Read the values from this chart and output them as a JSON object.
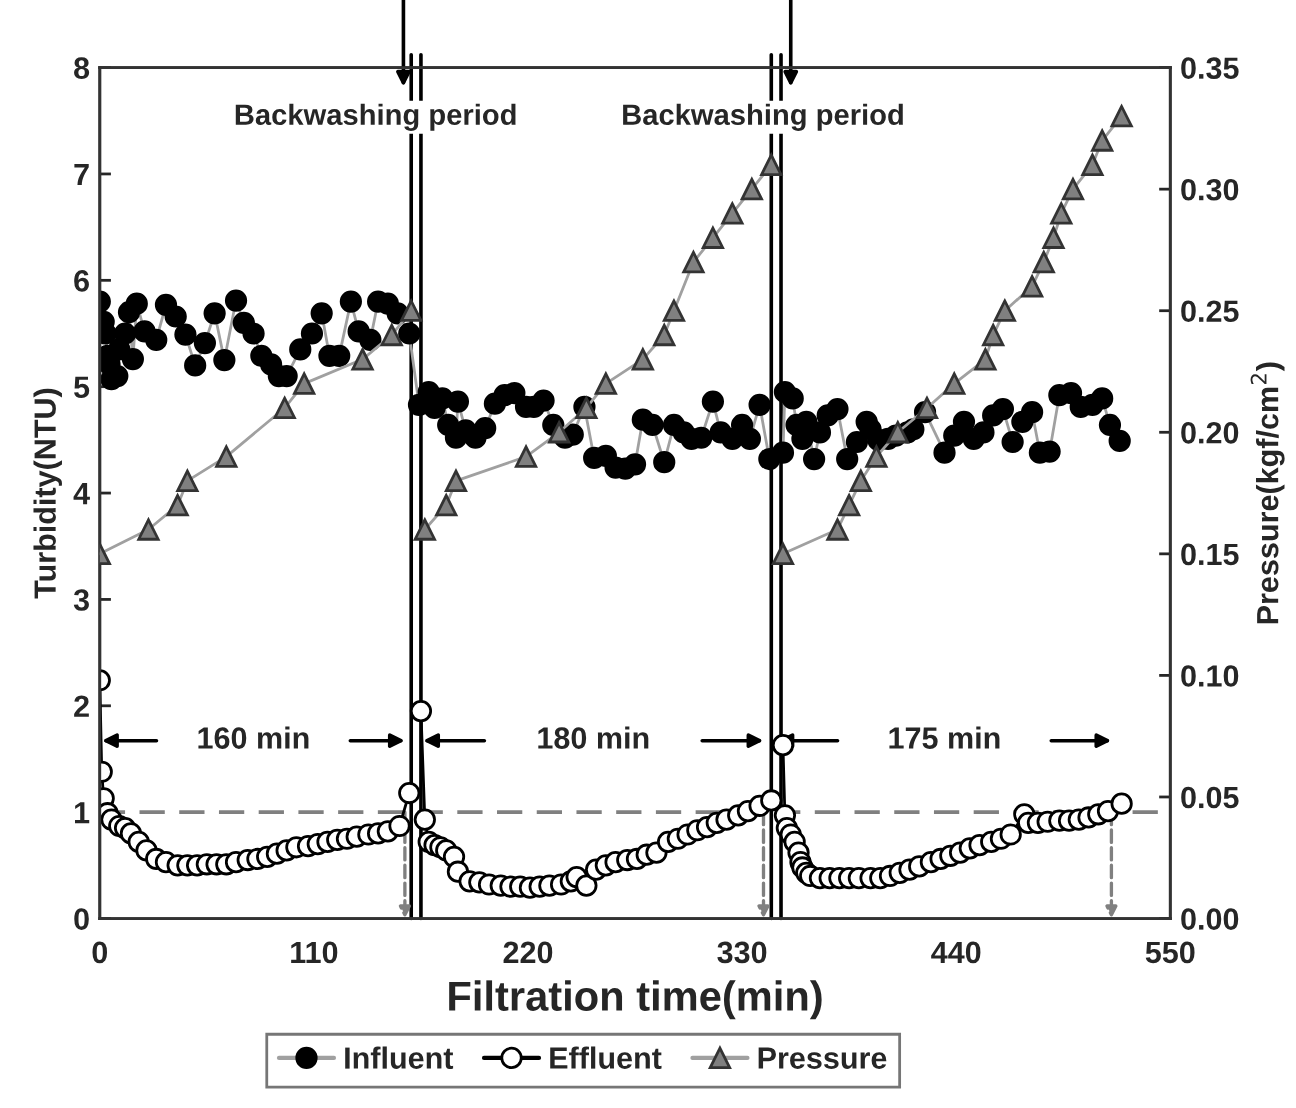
{
  "chart_data": {
    "type": "line",
    "xlabel": "Filtration time(min)",
    "ylabel": "Turbidity(NTU)",
    "y2label": "Pressure(kgf/cm$^{2}$)",
    "xlim": [
      0,
      550
    ],
    "xticks": [
      0,
      110,
      220,
      330,
      440,
      550
    ],
    "ylim": [
      0,
      8
    ],
    "yticks": [
      0,
      1,
      2,
      3,
      4,
      5,
      6,
      7,
      8
    ],
    "y2lim": [
      0,
      0.35
    ],
    "y2ticks": [
      {
        "value": 0,
        "label": "0.00"
      },
      {
        "value": 0.05,
        "label": "0.05"
      },
      {
        "value": 0.1,
        "label": "0.10"
      },
      {
        "value": 0.15,
        "label": "0.15"
      },
      {
        "value": 0.2,
        "label": "0.20"
      },
      {
        "value": 0.25,
        "label": "0.25"
      },
      {
        "value": 0.3,
        "label": "0.30"
      },
      {
        "value": 0.35,
        "label": "0.35"
      }
    ],
    "grid": false,
    "legend": "bottom",
    "line_style": "solid",
    "series": [
      {
        "name": "Influent",
        "color": "#000000",
        "marker": "circle",
        "x": [
          0,
          2,
          3,
          4,
          5,
          6,
          9,
          10,
          13,
          15,
          17,
          19,
          23,
          29,
          34,
          39,
          44,
          49,
          54,
          59,
          64,
          70,
          74,
          79,
          83,
          88,
          92,
          96,
          103,
          109,
          114,
          118,
          123,
          129,
          133,
          139,
          143,
          148,
          153,
          159,
          164,
          169,
          172,
          176,
          179,
          183,
          184,
          188,
          193,
          198,
          203,
          208,
          213,
          219,
          223,
          228,
          233,
          239,
          243,
          249,
          254,
          260,
          265,
          270,
          275,
          279,
          284,
          290,
          295,
          300,
          304,
          309,
          315,
          319,
          325,
          330,
          334,
          339,
          344,
          351,
          352,
          356,
          358,
          361,
          363,
          367,
          370,
          374,
          379,
          384,
          389,
          394,
          396,
          400,
          405,
          409,
          415,
          418,
          424,
          434,
          439,
          444,
          449,
          454,
          459,
          464,
          469,
          474,
          479,
          483,
          488,
          493,
          499,
          504,
          510,
          515,
          519,
          524
        ],
        "values": [
          5.8,
          5.61,
          5.5,
          5.29,
          5.21,
          5.07,
          5.1,
          5.35,
          5.5,
          5.7,
          5.26,
          5.78,
          5.52,
          5.44,
          5.77,
          5.66,
          5.49,
          5.2,
          5.41,
          5.69,
          5.25,
          5.81,
          5.6,
          5.5,
          5.29,
          5.21,
          5.1,
          5.1,
          5.35,
          5.5,
          5.69,
          5.29,
          5.29,
          5.8,
          5.52,
          5.44,
          5.8,
          5.78,
          5.69,
          5.5,
          4.83,
          4.95,
          4.8,
          4.89,
          4.64,
          4.52,
          4.86,
          4.59,
          4.52,
          4.61,
          4.84,
          4.92,
          4.94,
          4.81,
          4.81,
          4.87,
          4.64,
          4.52,
          4.55,
          4.81,
          4.33,
          4.35,
          4.24,
          4.23,
          4.27,
          4.69,
          4.64,
          4.29,
          4.64,
          4.57,
          4.51,
          4.52,
          4.86,
          4.57,
          4.51,
          4.64,
          4.51,
          4.83,
          4.32,
          4.38,
          4.95,
          4.89,
          4.64,
          4.51,
          4.67,
          4.32,
          4.57,
          4.73,
          4.79,
          4.32,
          4.48,
          4.67,
          4.6,
          4.5,
          4.51,
          4.54,
          4.57,
          4.6,
          4.76,
          4.38,
          4.54,
          4.67,
          4.51,
          4.57,
          4.73,
          4.79,
          4.48,
          4.67,
          4.76,
          4.38,
          4.39,
          4.92,
          4.94,
          4.81,
          4.83,
          4.89,
          4.64,
          4.49
        ]
      },
      {
        "name": "Effluent",
        "color": "#000000",
        "marker": "circle",
        "x": [
          0,
          1,
          2,
          4,
          6,
          10,
          13,
          16,
          20,
          24,
          29,
          34,
          40,
          45,
          50,
          55,
          60,
          65,
          70,
          76,
          81,
          86,
          91,
          96,
          101,
          107,
          112,
          117,
          122,
          127,
          132,
          138,
          143,
          148,
          154,
          159,
          162,
          165,
          167,
          169,
          172,
          175,
          178,
          182,
          184,
          190,
          195,
          200,
          206,
          211,
          216,
          221,
          226,
          231,
          237,
          242,
          245,
          250,
          255,
          260,
          265,
          271,
          276,
          281,
          286,
          292,
          297,
          302,
          307,
          312,
          317,
          322,
          328,
          333,
          339,
          345,
          348,
          351,
          352,
          353,
          355,
          357,
          359,
          360,
          361,
          363,
          365,
          370,
          375,
          380,
          385,
          390,
          396,
          401,
          406,
          411,
          416,
          421,
          427,
          432,
          437,
          442,
          447,
          452,
          458,
          463,
          468,
          475,
          477,
          482,
          487,
          493,
          498,
          503,
          508,
          513,
          518,
          525
        ],
        "values": [
          2.24,
          1.38,
          1.13,
          0.99,
          0.93,
          0.87,
          0.85,
          0.8,
          0.72,
          0.64,
          0.56,
          0.53,
          0.5,
          0.5,
          0.5,
          0.51,
          0.51,
          0.51,
          0.53,
          0.55,
          0.56,
          0.58,
          0.61,
          0.64,
          0.67,
          0.68,
          0.7,
          0.72,
          0.74,
          0.75,
          0.77,
          0.79,
          0.8,
          0.82,
          0.87,
          1.18,
          null,
          1.95,
          0.93,
          0.72,
          0.69,
          0.67,
          0.64,
          0.58,
          0.44,
          0.35,
          0.34,
          0.32,
          0.31,
          0.3,
          0.3,
          0.29,
          0.3,
          0.31,
          0.32,
          0.35,
          0.39,
          0.31,
          0.46,
          0.5,
          0.53,
          0.55,
          0.56,
          0.6,
          0.62,
          0.72,
          0.75,
          0.79,
          0.83,
          0.86,
          0.9,
          0.93,
          0.97,
          1.01,
          1.06,
          1.11,
          null,
          1.63,
          0.97,
          0.85,
          0.79,
          0.72,
          0.62,
          0.53,
          0.48,
          0.43,
          0.4,
          0.38,
          0.38,
          0.38,
          0.38,
          0.38,
          0.38,
          0.38,
          0.4,
          0.43,
          0.46,
          0.49,
          0.53,
          0.56,
          0.59,
          0.62,
          0.66,
          0.69,
          0.72,
          0.75,
          0.79,
          0.98,
          0.9,
          0.9,
          0.91,
          0.92,
          0.92,
          0.93,
          0.95,
          0.98,
          1.01,
          1.08
        ]
      },
      {
        "name": "Pressure",
        "color": "#808080",
        "marker": "triangle",
        "axis": "y2",
        "x": [
          0,
          25,
          40,
          45,
          65,
          95,
          105,
          135,
          150,
          160,
          163,
          167,
          178,
          183,
          219,
          236,
          250,
          260,
          279,
          290,
          295,
          305,
          315,
          325,
          335,
          345,
          348,
          351,
          379,
          385,
          391,
          399,
          410,
          425,
          439,
          455,
          459,
          465,
          479,
          485,
          490,
          494,
          500,
          510,
          515,
          525
        ],
        "values": [
          0.15,
          0.16,
          0.17,
          0.18,
          0.19,
          0.21,
          0.22,
          0.23,
          0.24,
          0.25,
          null,
          0.16,
          0.17,
          0.18,
          0.19,
          0.2,
          0.21,
          0.22,
          0.23,
          0.24,
          0.25,
          0.27,
          0.28,
          0.29,
          0.3,
          0.31,
          null,
          0.15,
          0.16,
          0.17,
          0.18,
          0.19,
          0.2,
          0.21,
          0.22,
          0.23,
          0.24,
          0.25,
          0.26,
          0.27,
          0.28,
          0.29,
          0.3,
          0.31,
          0.32,
          0.33
        ]
      }
    ],
    "ref_lines": [
      {
        "axis": "y",
        "value": 1,
        "color": "#808080",
        "line_style": "dashed"
      },
      {
        "axis": "x",
        "value": 160,
        "color": "#000000",
        "line_style": "solid"
      },
      {
        "axis": "x",
        "value": 165,
        "color": "#000000",
        "line_style": "solid"
      },
      {
        "axis": "x",
        "value": 345,
        "color": "#000000",
        "line_style": "solid"
      },
      {
        "axis": "x",
        "value": 350,
        "color": "#000000",
        "line_style": "solid"
      }
    ],
    "annotations": [
      {
        "text": "Backwashing period",
        "x": 156,
        "y": 7.82
      },
      {
        "text": "Backwashing period",
        "x": 355,
        "y": 7.82
      },
      "160 min",
      "180 min",
      "175 min"
    ]
  }
}
